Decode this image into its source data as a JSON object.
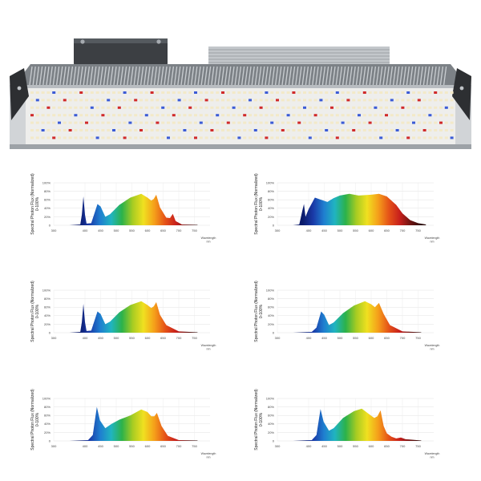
{
  "product": {
    "name_icon": "led-grow-light-bar",
    "colors": {
      "frame": "#c9cdd1",
      "heatsink": "#9ea3a8",
      "driver": "#3c3f43",
      "panel": "#f4f4f2",
      "led_white": "#f3e9c8",
      "led_blue": "#3b5bd6",
      "led_red": "#d02a2a"
    }
  },
  "ylabel_line1": "Spectral Photon Flux (Normalized)",
  "ylabel_line2": "0-100%",
  "xlabel_line1": "Wavelength",
  "xlabel_line2": "nm",
  "y_ticks": [
    "100%",
    "80%",
    "60%",
    "40%",
    "20%",
    "0"
  ],
  "x_ticks": [
    "300",
    "400",
    "450",
    "500",
    "550",
    "600",
    "650",
    "700",
    "750"
  ],
  "spectrum_gradient": [
    "#0a1a6a",
    "#1a3aa8",
    "#1f7fd0",
    "#20b4c0",
    "#2cb24a",
    "#a8cc22",
    "#f0e020",
    "#f5a01a",
    "#e55318",
    "#c8201c",
    "#6e1412",
    "#2a0a0a"
  ],
  "chart_data": [
    {
      "type": "area",
      "x_range_nm": [
        350,
        780
      ],
      "ylim": [
        0,
        100
      ],
      "points": [
        [
          350,
          0
        ],
        [
          385,
          2
        ],
        [
          390,
          25
        ],
        [
          395,
          68
        ],
        [
          400,
          25
        ],
        [
          405,
          4
        ],
        [
          420,
          5
        ],
        [
          440,
          50
        ],
        [
          450,
          44
        ],
        [
          465,
          20
        ],
        [
          480,
          26
        ],
        [
          510,
          48
        ],
        [
          545,
          65
        ],
        [
          580,
          74
        ],
        [
          600,
          65
        ],
        [
          612,
          58
        ],
        [
          620,
          62
        ],
        [
          628,
          72
        ],
        [
          640,
          42
        ],
        [
          660,
          18
        ],
        [
          672,
          17
        ],
        [
          681,
          27
        ],
        [
          690,
          10
        ],
        [
          710,
          2
        ],
        [
          760,
          1
        ]
      ]
    },
    {
      "type": "area",
      "x_range_nm": [
        350,
        780
      ],
      "ylim": [
        0,
        100
      ],
      "points": [
        [
          350,
          0
        ],
        [
          370,
          2
        ],
        [
          380,
          35
        ],
        [
          385,
          50
        ],
        [
          390,
          20
        ],
        [
          400,
          38
        ],
        [
          420,
          65
        ],
        [
          440,
          60
        ],
        [
          460,
          55
        ],
        [
          480,
          64
        ],
        [
          500,
          70
        ],
        [
          530,
          74
        ],
        [
          560,
          70
        ],
        [
          580,
          71
        ],
        [
          600,
          72
        ],
        [
          625,
          74
        ],
        [
          650,
          68
        ],
        [
          680,
          48
        ],
        [
          700,
          28
        ],
        [
          725,
          12
        ],
        [
          750,
          5
        ],
        [
          775,
          2
        ]
      ]
    },
    {
      "type": "area",
      "x_range_nm": [
        350,
        780
      ],
      "ylim": [
        0,
        100
      ],
      "points": [
        [
          350,
          0
        ],
        [
          385,
          2
        ],
        [
          390,
          25
        ],
        [
          395,
          68
        ],
        [
          400,
          25
        ],
        [
          405,
          4
        ],
        [
          420,
          5
        ],
        [
          440,
          50
        ],
        [
          450,
          44
        ],
        [
          465,
          20
        ],
        [
          480,
          26
        ],
        [
          510,
          48
        ],
        [
          545,
          65
        ],
        [
          580,
          74
        ],
        [
          600,
          65
        ],
        [
          612,
          58
        ],
        [
          620,
          62
        ],
        [
          628,
          72
        ],
        [
          640,
          42
        ],
        [
          660,
          18
        ],
        [
          700,
          3
        ],
        [
          760,
          1
        ]
      ]
    },
    {
      "type": "area",
      "x_range_nm": [
        350,
        780
      ],
      "ylim": [
        0,
        100
      ],
      "points": [
        [
          350,
          0
        ],
        [
          410,
          2
        ],
        [
          425,
          12
        ],
        [
          440,
          50
        ],
        [
          450,
          42
        ],
        [
          465,
          18
        ],
        [
          480,
          24
        ],
        [
          510,
          46
        ],
        [
          545,
          64
        ],
        [
          580,
          74
        ],
        [
          600,
          67
        ],
        [
          612,
          60
        ],
        [
          625,
          70
        ],
        [
          640,
          44
        ],
        [
          660,
          18
        ],
        [
          700,
          3
        ],
        [
          760,
          1
        ]
      ]
    },
    {
      "type": "area",
      "x_range_nm": [
        350,
        780
      ],
      "ylim": [
        0,
        100
      ],
      "points": [
        [
          350,
          0
        ],
        [
          410,
          2
        ],
        [
          425,
          14
        ],
        [
          432,
          50
        ],
        [
          438,
          80
        ],
        [
          448,
          48
        ],
        [
          465,
          30
        ],
        [
          485,
          40
        ],
        [
          510,
          50
        ],
        [
          545,
          60
        ],
        [
          580,
          74
        ],
        [
          600,
          68
        ],
        [
          612,
          58
        ],
        [
          622,
          58
        ],
        [
          630,
          66
        ],
        [
          645,
          35
        ],
        [
          665,
          12
        ],
        [
          700,
          2
        ],
        [
          760,
          1
        ]
      ]
    },
    {
      "type": "area",
      "x_range_nm": [
        350,
        780
      ],
      "ylim": [
        0,
        100
      ],
      "points": [
        [
          350,
          0
        ],
        [
          410,
          2
        ],
        [
          425,
          14
        ],
        [
          438,
          75
        ],
        [
          448,
          45
        ],
        [
          465,
          24
        ],
        [
          480,
          30
        ],
        [
          510,
          54
        ],
        [
          545,
          70
        ],
        [
          570,
          76
        ],
        [
          595,
          62
        ],
        [
          610,
          54
        ],
        [
          620,
          58
        ],
        [
          630,
          72
        ],
        [
          640,
          35
        ],
        [
          650,
          18
        ],
        [
          665,
          10
        ],
        [
          680,
          6
        ],
        [
          695,
          8
        ],
        [
          710,
          4
        ],
        [
          760,
          1
        ]
      ]
    }
  ]
}
